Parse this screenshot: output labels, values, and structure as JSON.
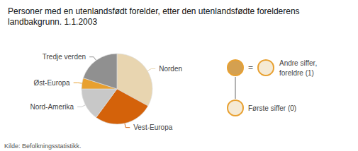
{
  "chart_data": {
    "type": "pie",
    "title": "Personer med en utenlandsfødt forelder, etter den utenlandsfødte forelderens landbakgrunn. 1.1.2003",
    "categories": [
      "Norden",
      "Vest-Europa",
      "Nord-Amerika",
      "Øst-Europa",
      "Tredje verden"
    ],
    "values": [
      33,
      27,
      15,
      5,
      20
    ],
    "colors": [
      "#e8d5b0",
      "#d4620a",
      "#c8c8c8",
      "#e8a030",
      "#909090"
    ],
    "annotations": [
      "=",
      "Andre siffer,",
      "foreldre (1)",
      "Første siffer (0)"
    ],
    "source": "Kilde: Befolkningsstatistikk."
  }
}
